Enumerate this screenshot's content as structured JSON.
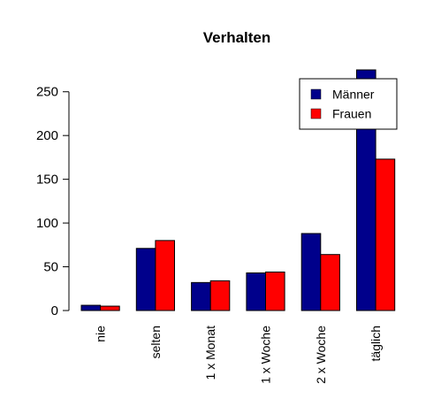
{
  "chart_data": {
    "type": "bar",
    "title": "Verhalten",
    "xlabel": "",
    "ylabel": "",
    "categories": [
      "nie",
      "selten",
      "1 x Monat",
      "1 x Woche",
      "2 x Woche",
      "täglich"
    ],
    "series": [
      {
        "name": "Männer",
        "color": "#00008b",
        "values": [
          6,
          71,
          32,
          43,
          88,
          275
        ]
      },
      {
        "name": "Frauen",
        "color": "#ff0000",
        "values": [
          5,
          80,
          34,
          44,
          64,
          173
        ]
      }
    ],
    "ylim": [
      0,
      275
    ],
    "yticks": [
      0,
      50,
      100,
      150,
      200,
      250
    ],
    "grid": false,
    "legend_position": "top-right"
  }
}
